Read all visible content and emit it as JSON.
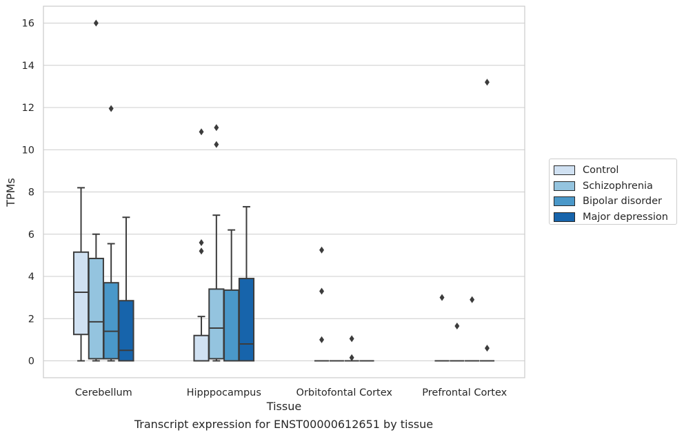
{
  "chart_data": {
    "type": "box",
    "title": "",
    "xlabel": "Tissue",
    "ylabel": "TPMs",
    "caption": "Transcript expression for ENST00000612651 by tissue",
    "ylim": [
      -0.8,
      16.8
    ],
    "yticks": [
      0,
      2,
      4,
      6,
      8,
      10,
      12,
      14,
      16
    ],
    "grid": true,
    "legend_position": "right",
    "categories": [
      "Cerebellum",
      "Hipppocampus",
      "Orbitofontal Cortex",
      "Prefrontal Cortex"
    ],
    "series": [
      {
        "name": "Control",
        "color": "#d0e1f2",
        "boxes": [
          {
            "min": 0.0,
            "q1": 1.25,
            "median": 3.25,
            "q3": 5.15,
            "max": 8.2,
            "outliers": []
          },
          {
            "min": 0.0,
            "q1": 0.0,
            "median": 0.0,
            "q3": 1.2,
            "max": 2.1,
            "outliers": [
              5.2,
              5.6,
              10.85
            ]
          },
          {
            "min": 0.0,
            "q1": 0.0,
            "median": 0.0,
            "q3": 0.0,
            "max": 0.0,
            "outliers": [
              1.0,
              3.3,
              5.25
            ]
          },
          {
            "min": 0.0,
            "q1": 0.0,
            "median": 0.0,
            "q3": 0.0,
            "max": 0.0,
            "outliers": [
              3.0
            ]
          }
        ]
      },
      {
        "name": "Schizophrenia",
        "color": "#94c4df",
        "boxes": [
          {
            "min": 0.0,
            "q1": 0.1,
            "median": 1.85,
            "q3": 4.85,
            "max": 6.0,
            "outliers": [
              16.0
            ]
          },
          {
            "min": 0.0,
            "q1": 0.1,
            "median": 1.55,
            "q3": 3.4,
            "max": 6.9,
            "outliers": [
              10.25,
              11.05
            ]
          },
          {
            "min": 0.0,
            "q1": 0.0,
            "median": 0.0,
            "q3": 0.0,
            "max": 0.0,
            "outliers": []
          },
          {
            "min": 0.0,
            "q1": 0.0,
            "median": 0.0,
            "q3": 0.0,
            "max": 0.0,
            "outliers": [
              1.65
            ]
          }
        ]
      },
      {
        "name": "Bipolar disorder",
        "color": "#4a98c9",
        "boxes": [
          {
            "min": 0.0,
            "q1": 0.1,
            "median": 1.4,
            "q3": 3.7,
            "max": 5.55,
            "outliers": [
              11.95
            ]
          },
          {
            "min": 0.0,
            "q1": 0.0,
            "median": 0.0,
            "q3": 3.35,
            "max": 6.2,
            "outliers": []
          },
          {
            "min": 0.0,
            "q1": 0.0,
            "median": 0.0,
            "q3": 0.0,
            "max": 0.0,
            "outliers": [
              0.15,
              1.05
            ]
          },
          {
            "min": 0.0,
            "q1": 0.0,
            "median": 0.0,
            "q3": 0.0,
            "max": 0.0,
            "outliers": [
              2.9
            ]
          }
        ]
      },
      {
        "name": "Major depression",
        "color": "#1764ab",
        "boxes": [
          {
            "min": 0.0,
            "q1": 0.0,
            "median": 0.5,
            "q3": 2.85,
            "max": 6.8,
            "outliers": []
          },
          {
            "min": 0.0,
            "q1": 0.0,
            "median": 0.8,
            "q3": 3.9,
            "max": 7.3,
            "outliers": []
          },
          {
            "min": 0.0,
            "q1": 0.0,
            "median": 0.0,
            "q3": 0.0,
            "max": 0.0,
            "outliers": []
          },
          {
            "min": 0.0,
            "q1": 0.0,
            "median": 0.0,
            "q3": 0.0,
            "max": 0.0,
            "outliers": [
              0.6,
              13.2
            ]
          }
        ]
      }
    ]
  }
}
